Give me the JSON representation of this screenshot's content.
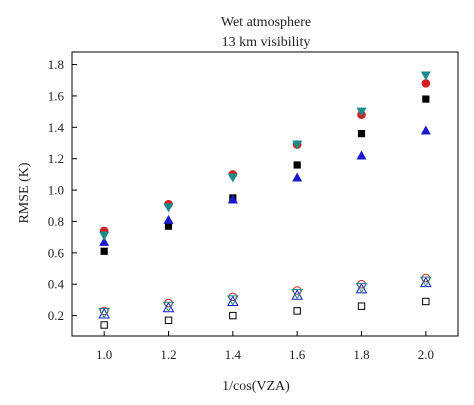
{
  "chart_data": {
    "type": "scatter",
    "title": "Wet atmosphere",
    "subtitle": "13 km visibility",
    "xlabel": "1/cos(VZA)",
    "ylabel": "RMSE (K)",
    "xlim": [
      0.9,
      2.1
    ],
    "ylim": [
      0.07,
      1.88
    ],
    "x_ticks": [
      1.0,
      1.2,
      1.4,
      1.6,
      1.8,
      2.0
    ],
    "x_tick_labels": [
      "1.0",
      "1.2",
      "1.4",
      "1.6",
      "1.8",
      "2.0"
    ],
    "y_ticks": [
      0.2,
      0.4,
      0.6,
      0.8,
      1.0,
      1.2,
      1.4,
      1.6,
      1.8
    ],
    "y_tick_labels": [
      "0.2",
      "0.4",
      "0.6",
      "0.8",
      "1.0",
      "1.2",
      "1.4",
      "1.6",
      "1.8"
    ],
    "x": [
      1.0,
      1.2,
      1.4,
      1.6,
      1.8,
      2.0
    ],
    "series": [
      {
        "marker": "filled-square",
        "color": "#000000",
        "values": [
          0.61,
          0.77,
          0.95,
          1.16,
          1.36,
          1.58
        ]
      },
      {
        "marker": "filled-circle",
        "color": "#d42020",
        "values": [
          0.74,
          0.91,
          1.1,
          1.29,
          1.48,
          1.68
        ]
      },
      {
        "marker": "filled-triangle-up",
        "color": "#1a1acc",
        "values": [
          0.67,
          0.81,
          0.94,
          1.08,
          1.22,
          1.38
        ]
      },
      {
        "marker": "filled-triangle-down",
        "color": "#1a8a8a",
        "values": [
          0.71,
          0.89,
          1.08,
          1.29,
          1.5,
          1.73
        ]
      },
      {
        "marker": "open-square",
        "color": "#000000",
        "values": [
          0.14,
          0.17,
          0.2,
          0.23,
          0.26,
          0.29
        ]
      },
      {
        "marker": "open-circle",
        "color": "#d42020",
        "values": [
          0.23,
          0.28,
          0.32,
          0.36,
          0.4,
          0.44
        ]
      },
      {
        "marker": "open-triangle-up",
        "color": "#1a1acc",
        "values": [
          0.21,
          0.25,
          0.29,
          0.33,
          0.37,
          0.41
        ]
      },
      {
        "marker": "open-triangle-down",
        "color": "#1a8a8a",
        "values": [
          0.22,
          0.26,
          0.3,
          0.34,
          0.38,
          0.42
        ]
      }
    ],
    "grid": false,
    "legend": "none"
  }
}
